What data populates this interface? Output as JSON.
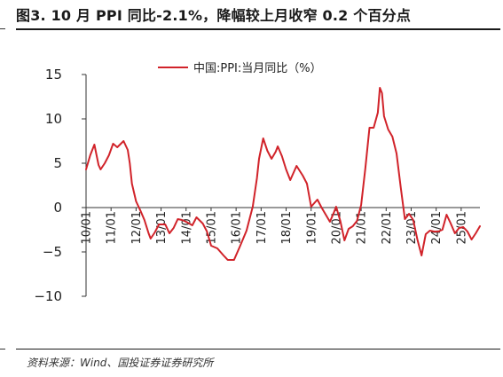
{
  "title": "图3. 10 月 PPI 同比-2.1%，降幅较上月收窄 0.2 个百分点",
  "source": "资料来源：Wind、国投证券证券研究所",
  "colors": {
    "series": "#d1232a",
    "axis": "#333333",
    "text": "#222222"
  },
  "chart_data": {
    "type": "line",
    "title": "",
    "xlabel": "",
    "ylabel": "",
    "ylim": [
      -10,
      15
    ],
    "yticks": [
      15,
      10,
      5,
      0,
      -5,
      -10
    ],
    "grid": false,
    "legend_position": "top",
    "x_tick_labels": [
      "10/01",
      "11/01",
      "12/01",
      "13/01",
      "14/01",
      "15/01",
      "16/01",
      "17/01",
      "18/01",
      "19/01",
      "20/01",
      "21/01",
      "22/01",
      "23/01",
      "24/01",
      "25/01"
    ],
    "x_start": "2010-01",
    "x_end": "2025-10",
    "series": [
      {
        "name": "中国:PPI:当月同比（%）",
        "points": [
          [
            "2010-01",
            4.3
          ],
          [
            "2010-03",
            5.9
          ],
          [
            "2010-05",
            7.1
          ],
          [
            "2010-07",
            4.8
          ],
          [
            "2010-08",
            4.3
          ],
          [
            "2010-10",
            5.0
          ],
          [
            "2010-12",
            5.9
          ],
          [
            "2011-02",
            7.2
          ],
          [
            "2011-04",
            6.8
          ],
          [
            "2011-07",
            7.5
          ],
          [
            "2011-09",
            6.5
          ],
          [
            "2011-10",
            5.0
          ],
          [
            "2011-11",
            2.7
          ],
          [
            "2012-01",
            0.7
          ],
          [
            "2012-03",
            -0.3
          ],
          [
            "2012-05",
            -1.4
          ],
          [
            "2012-07",
            -2.9
          ],
          [
            "2012-08",
            -3.5
          ],
          [
            "2012-10",
            -2.8
          ],
          [
            "2012-12",
            -1.9
          ],
          [
            "2013-03",
            -1.9
          ],
          [
            "2013-05",
            -2.9
          ],
          [
            "2013-07",
            -2.3
          ],
          [
            "2013-09",
            -1.3
          ],
          [
            "2013-11",
            -1.4
          ],
          [
            "2014-01",
            -1.6
          ],
          [
            "2014-04",
            -2.0
          ],
          [
            "2014-06",
            -1.1
          ],
          [
            "2014-09",
            -1.8
          ],
          [
            "2014-11",
            -2.7
          ],
          [
            "2015-01",
            -4.3
          ],
          [
            "2015-04",
            -4.6
          ],
          [
            "2015-07",
            -5.4
          ],
          [
            "2015-09",
            -5.9
          ],
          [
            "2015-12",
            -5.9
          ],
          [
            "2016-03",
            -4.3
          ],
          [
            "2016-06",
            -2.6
          ],
          [
            "2016-09",
            0.1
          ],
          [
            "2016-11",
            3.3
          ],
          [
            "2016-12",
            5.5
          ],
          [
            "2017-02",
            7.8
          ],
          [
            "2017-04",
            6.4
          ],
          [
            "2017-06",
            5.5
          ],
          [
            "2017-08",
            6.3
          ],
          [
            "2017-09",
            6.9
          ],
          [
            "2017-11",
            5.8
          ],
          [
            "2018-01",
            4.3
          ],
          [
            "2018-03",
            3.1
          ],
          [
            "2018-06",
            4.7
          ],
          [
            "2018-09",
            3.6
          ],
          [
            "2018-11",
            2.7
          ],
          [
            "2019-01",
            0.1
          ],
          [
            "2019-04",
            0.9
          ],
          [
            "2019-06",
            0.0
          ],
          [
            "2019-08",
            -0.8
          ],
          [
            "2019-10",
            -1.6
          ],
          [
            "2019-12",
            -0.5
          ],
          [
            "2020-01",
            0.1
          ],
          [
            "2020-03",
            -1.5
          ],
          [
            "2020-05",
            -3.7
          ],
          [
            "2020-07",
            -2.4
          ],
          [
            "2020-09",
            -2.1
          ],
          [
            "2020-11",
            -1.5
          ],
          [
            "2021-01",
            0.3
          ],
          [
            "2021-03",
            4.4
          ],
          [
            "2021-05",
            9.0
          ],
          [
            "2021-07",
            9.0
          ],
          [
            "2021-09",
            10.7
          ],
          [
            "2021-10",
            13.5
          ],
          [
            "2021-11",
            12.9
          ],
          [
            "2021-12",
            10.3
          ],
          [
            "2022-02",
            8.8
          ],
          [
            "2022-04",
            8.0
          ],
          [
            "2022-06",
            6.1
          ],
          [
            "2022-08",
            2.3
          ],
          [
            "2022-10",
            -1.3
          ],
          [
            "2022-12",
            -0.7
          ],
          [
            "2023-02",
            -1.4
          ],
          [
            "2023-04",
            -3.6
          ],
          [
            "2023-06",
            -5.4
          ],
          [
            "2023-08",
            -3.0
          ],
          [
            "2023-10",
            -2.6
          ],
          [
            "2023-12",
            -2.7
          ],
          [
            "2024-02",
            -2.7
          ],
          [
            "2024-04",
            -2.5
          ],
          [
            "2024-06",
            -0.8
          ],
          [
            "2024-08",
            -1.8
          ],
          [
            "2024-10",
            -2.9
          ],
          [
            "2024-12",
            -2.3
          ],
          [
            "2025-02",
            -2.2
          ],
          [
            "2025-04",
            -2.7
          ],
          [
            "2025-06",
            -3.6
          ],
          [
            "2025-08",
            -2.9
          ],
          [
            "2025-10",
            -2.1
          ]
        ]
      }
    ]
  }
}
